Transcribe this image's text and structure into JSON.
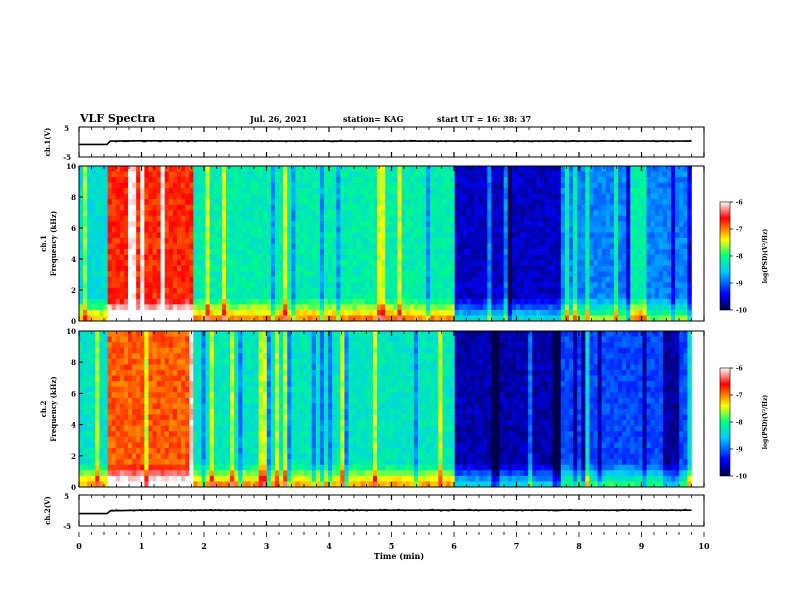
{
  "header": {
    "title": "VLF Spectra",
    "date": "Jul. 26, 2021",
    "station": "station= KAG",
    "start_ut": "start UT =  16: 38: 37"
  },
  "colors": {
    "spectrum_scale": [
      "#00004a",
      "#0000ff",
      "#00c8ff",
      "#00ff80",
      "#ffff00",
      "#ff0000",
      "#ffffff"
    ]
  },
  "chart_data": [
    {
      "type": "line",
      "name": "waveform-ch1",
      "ylabel": "ch.1(V)",
      "ylim": [
        -5,
        5
      ],
      "yticks": [
        "5",
        "-5"
      ],
      "x": [
        0,
        0.45,
        0.5,
        1,
        2,
        3,
        4,
        5,
        6,
        7,
        8,
        9,
        9.8
      ],
      "y": [
        -0.8,
        -0.8,
        0.3,
        0.4,
        0.4,
        0.3,
        0.3,
        0.3,
        0.3,
        0.3,
        0.3,
        0.3,
        0.3
      ]
    },
    {
      "type": "heatmap",
      "name": "spectrogram-ch1",
      "ylabel": "ch.1\nFrequency (kHz)",
      "xlim": [
        0,
        10
      ],
      "ylim": [
        0,
        10
      ],
      "yticks": [
        "0",
        "2",
        "4",
        "6",
        "8",
        "10"
      ],
      "colorbar": {
        "label": "log(PSD)(V²/Hz)",
        "min": -10,
        "max": -6,
        "ticks": [
          "-6",
          "-7",
          "-8",
          "-9",
          "-10"
        ]
      },
      "segments": [
        {
          "t_start": 0.0,
          "t_end": 0.45,
          "level": 0.4
        },
        {
          "t_start": 0.45,
          "t_end": 1.85,
          "level": 0.82
        },
        {
          "t_start": 1.85,
          "t_end": 6.0,
          "level": 0.45
        },
        {
          "t_start": 6.0,
          "t_end": 7.7,
          "level": 0.1
        },
        {
          "t_start": 7.7,
          "t_end": 9.8,
          "level": 0.28
        }
      ]
    },
    {
      "type": "heatmap",
      "name": "spectrogram-ch2",
      "ylabel": "ch.2\nFrequency (kHz)",
      "xlim": [
        0,
        10
      ],
      "ylim": [
        0,
        10
      ],
      "yticks": [
        "0",
        "2",
        "4",
        "6",
        "8",
        "10"
      ],
      "colorbar": {
        "label": "log(PSD)(V²/Hz)",
        "min": -10,
        "max": -6,
        "ticks": [
          "-6",
          "-7",
          "-8",
          "-9",
          "-10"
        ]
      },
      "segments": [
        {
          "t_start": 0.0,
          "t_end": 0.45,
          "level": 0.42
        },
        {
          "t_start": 0.45,
          "t_end": 1.85,
          "level": 0.78
        },
        {
          "t_start": 1.85,
          "t_end": 6.0,
          "level": 0.43
        },
        {
          "t_start": 6.0,
          "t_end": 7.7,
          "level": 0.08
        },
        {
          "t_start": 7.7,
          "t_end": 9.8,
          "level": 0.22
        }
      ]
    },
    {
      "type": "line",
      "name": "waveform-ch2",
      "ylabel": "ch.2(V)",
      "ylim": [
        -5,
        5
      ],
      "yticks": [
        "5",
        "-5"
      ],
      "x": [
        0,
        0.45,
        0.5,
        1,
        2,
        3,
        4,
        5,
        6,
        7,
        8,
        9,
        9.8
      ],
      "y": [
        -1.0,
        -1.0,
        -0.1,
        0.1,
        0.1,
        0.1,
        0.1,
        0.1,
        0.1,
        0.1,
        0.1,
        0.1,
        0.1
      ]
    }
  ],
  "xaxis": {
    "label": "Time (min)",
    "ticks": [
      "0",
      "1",
      "2",
      "3",
      "4",
      "5",
      "6",
      "7",
      "8",
      "9",
      "10"
    ],
    "xlim": [
      0,
      10
    ]
  }
}
